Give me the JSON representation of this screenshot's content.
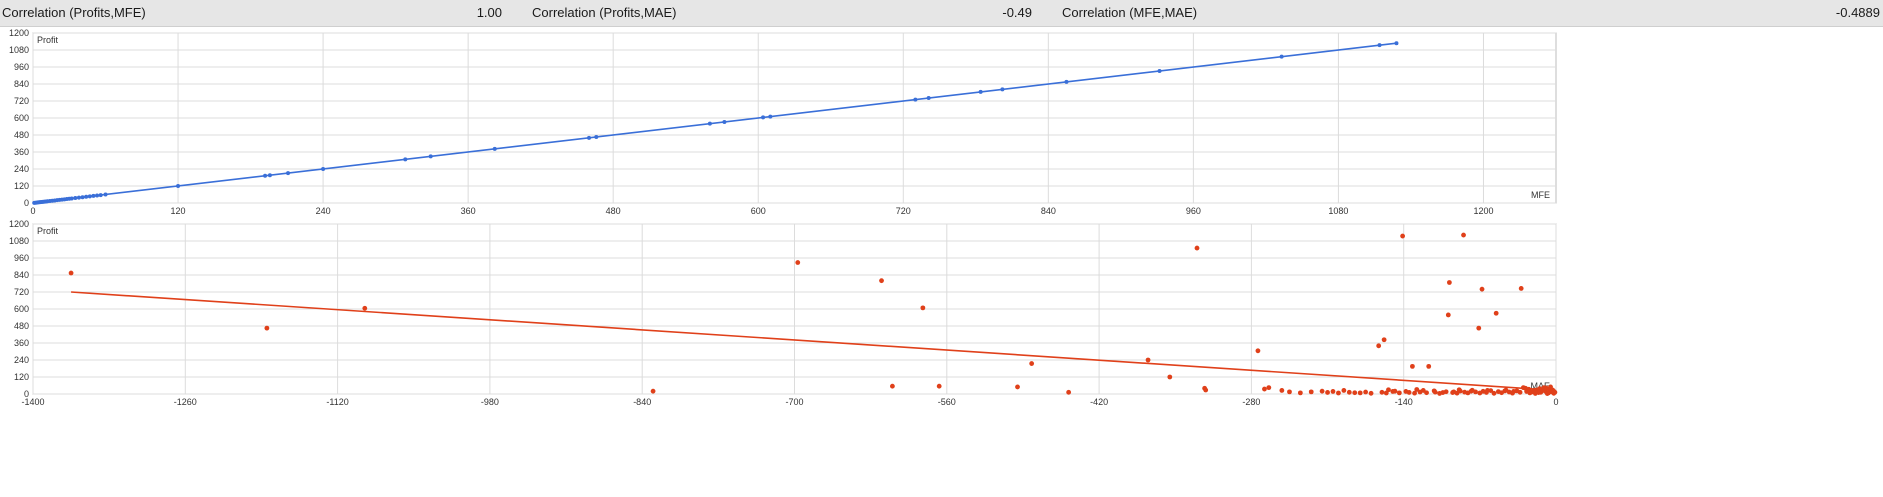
{
  "stats": [
    {
      "label": "Correlation (Profits,MFE)",
      "value": "1.00"
    },
    {
      "label": "Correlation (Profits,MAE)",
      "value": "-0.49"
    },
    {
      "label": "Correlation (MFE,MAE)",
      "value": "-0.4889"
    }
  ],
  "colors": {
    "mfe": "#3a6fd8",
    "mae": "#e0401a",
    "grid": "#dcdcdc",
    "frame": "#bdbdbd"
  },
  "chart_data": [
    {
      "type": "line",
      "ylabel": "Profit",
      "xlabel": "MFE",
      "xlim": [
        0,
        1260
      ],
      "ylim": [
        0,
        1200
      ],
      "xticks": [
        0,
        120,
        240,
        360,
        480,
        600,
        720,
        840,
        960,
        1080,
        1200
      ],
      "yticks": [
        0,
        120,
        240,
        360,
        480,
        600,
        720,
        840,
        960,
        1080,
        1200
      ],
      "grid": true,
      "trend": [
        [
          0,
          0
        ],
        [
          1128,
          1128
        ]
      ],
      "points": [
        [
          1,
          1
        ],
        [
          2,
          2
        ],
        [
          3,
          3
        ],
        [
          4,
          4
        ],
        [
          5,
          5
        ],
        [
          6,
          6
        ],
        [
          7,
          7
        ],
        [
          8,
          8
        ],
        [
          9,
          9
        ],
        [
          10,
          10
        ],
        [
          11,
          11
        ],
        [
          12,
          12
        ],
        [
          14,
          14
        ],
        [
          16,
          16
        ],
        [
          18,
          18
        ],
        [
          20,
          20
        ],
        [
          22,
          22
        ],
        [
          24,
          24
        ],
        [
          26,
          26
        ],
        [
          28,
          28
        ],
        [
          30,
          30
        ],
        [
          32,
          32
        ],
        [
          35,
          35
        ],
        [
          38,
          38
        ],
        [
          41,
          41
        ],
        [
          44,
          44
        ],
        [
          47,
          47
        ],
        [
          50,
          50
        ],
        [
          53,
          53
        ],
        [
          56,
          56
        ],
        [
          60,
          60
        ],
        [
          120,
          120
        ],
        [
          192,
          192
        ],
        [
          196,
          196
        ],
        [
          211,
          211
        ],
        [
          240,
          240
        ],
        [
          308,
          308
        ],
        [
          329,
          329
        ],
        [
          382,
          382
        ],
        [
          460,
          460
        ],
        [
          466,
          466
        ],
        [
          560,
          560
        ],
        [
          572,
          572
        ],
        [
          604,
          604
        ],
        [
          610,
          610
        ],
        [
          730,
          730
        ],
        [
          741,
          741
        ],
        [
          784,
          784
        ],
        [
          802,
          802
        ],
        [
          855,
          855
        ],
        [
          932,
          932
        ],
        [
          1033,
          1033
        ],
        [
          1114,
          1114
        ],
        [
          1128,
          1128
        ]
      ]
    },
    {
      "type": "scatter",
      "ylabel": "Profit",
      "xlabel": "MAE",
      "xlim": [
        -1400,
        0
      ],
      "ylim": [
        0,
        1200
      ],
      "xticks": [
        -1400,
        -1260,
        -1120,
        -980,
        -840,
        -700,
        -560,
        -420,
        -280,
        -140,
        0
      ],
      "yticks": [
        0,
        120,
        240,
        360,
        480,
        600,
        720,
        840,
        960,
        1080,
        1200
      ],
      "grid": true,
      "trend": [
        [
          -1365,
          720
        ],
        [
          0,
          25
        ]
      ],
      "points": [
        [
          -1365,
          854
        ],
        [
          -1185,
          465
        ],
        [
          -1095,
          605
        ],
        [
          -830,
          20
        ],
        [
          -697,
          928
        ],
        [
          -620,
          800
        ],
        [
          -610,
          55
        ],
        [
          -582,
          608
        ],
        [
          -567,
          55
        ],
        [
          -495,
          50
        ],
        [
          -482,
          215
        ],
        [
          -448,
          12
        ],
        [
          -375,
          240
        ],
        [
          -355,
          120
        ],
        [
          -330,
          1030
        ],
        [
          -323,
          40
        ],
        [
          -322,
          28
        ],
        [
          -274,
          305
        ],
        [
          -268,
          35
        ],
        [
          -264,
          45
        ],
        [
          -252,
          25
        ],
        [
          -245,
          15
        ],
        [
          -235,
          8
        ],
        [
          -225,
          15
        ],
        [
          -215,
          20
        ],
        [
          -205,
          18
        ],
        [
          -195,
          25
        ],
        [
          -190,
          12
        ],
        [
          -180,
          8
        ],
        [
          -163,
          340
        ],
        [
          -158,
          383
        ],
        [
          -154,
          30
        ],
        [
          -148,
          20
        ],
        [
          -141,
          1115
        ],
        [
          -138,
          18
        ],
        [
          -132,
          195
        ],
        [
          -128,
          32
        ],
        [
          -122,
          25
        ],
        [
          -117,
          195
        ],
        [
          -111,
          13
        ],
        [
          -104,
          10
        ],
        [
          -99,
          558
        ],
        [
          -98,
          787
        ],
        [
          -94,
          15
        ],
        [
          -89,
          30
        ],
        [
          -85,
          1122
        ],
        [
          -78,
          20
        ],
        [
          -71,
          465
        ],
        [
          -68,
          740
        ],
        [
          -63,
          25
        ],
        [
          -55,
          570
        ],
        [
          -47,
          22
        ],
        [
          -39,
          18
        ],
        [
          -32,
          745
        ],
        [
          -28,
          40
        ],
        [
          -22,
          15
        ],
        [
          -18,
          28
        ],
        [
          -14,
          12
        ],
        [
          -10,
          20
        ],
        [
          -7,
          8
        ],
        [
          -4,
          15
        ],
        [
          -2,
          5
        ],
        [
          -12,
          30
        ],
        [
          -16,
          10
        ],
        [
          -20,
          25
        ],
        [
          -24,
          8
        ],
        [
          -27,
          18
        ],
        [
          -33,
          12
        ],
        [
          -36,
          22
        ],
        [
          -40,
          6
        ],
        [
          -43,
          14
        ],
        [
          -46,
          28
        ],
        [
          -50,
          9
        ],
        [
          -53,
          17
        ],
        [
          -57,
          5
        ],
        [
          -60,
          24
        ],
        [
          -64,
          11
        ],
        [
          -67,
          19
        ],
        [
          -70,
          7
        ],
        [
          -74,
          15
        ],
        [
          -77,
          26
        ],
        [
          -81,
          8
        ],
        [
          -84,
          13
        ],
        [
          -88,
          21
        ],
        [
          -91,
          6
        ],
        [
          -95,
          10
        ],
        [
          -101,
          16
        ],
        [
          -107,
          4
        ],
        [
          -112,
          22
        ],
        [
          -119,
          9
        ],
        [
          -125,
          14
        ],
        [
          -130,
          6
        ],
        [
          -135,
          11
        ],
        [
          -144,
          8
        ],
        [
          -150,
          18
        ],
        [
          -156,
          7
        ],
        [
          -160,
          12
        ],
        [
          -170,
          5
        ],
        [
          -175,
          14
        ],
        [
          -185,
          9
        ],
        [
          -200,
          7
        ],
        [
          -210,
          11
        ],
        [
          -6,
          35
        ],
        [
          -9,
          42
        ],
        [
          -3,
          28
        ],
        [
          -1,
          12
        ],
        [
          -5,
          50
        ],
        [
          -8,
          3
        ],
        [
          -11,
          45
        ],
        [
          -15,
          38
        ],
        [
          -19,
          4
        ],
        [
          -25,
          33
        ],
        [
          -30,
          45
        ]
      ]
    }
  ]
}
